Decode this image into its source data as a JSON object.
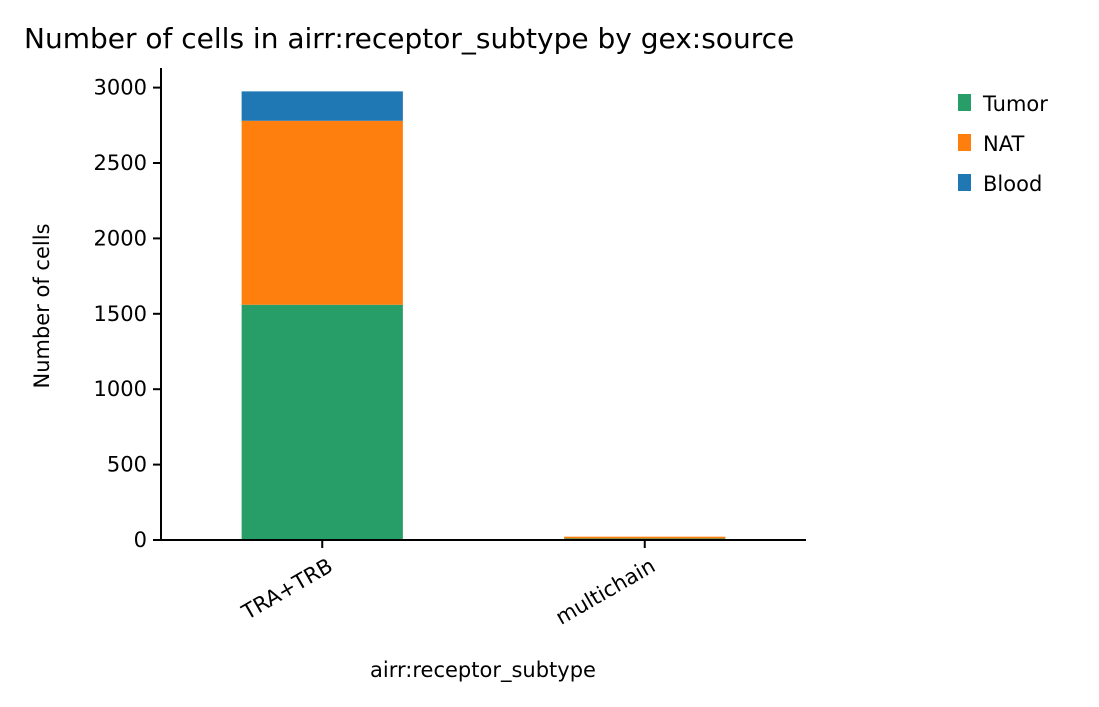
{
  "chart_data": {
    "type": "bar",
    "stacked": true,
    "title": "Number of cells in airr:receptor_subtype by gex:source",
    "xlabel": "airr:receptor_subtype",
    "ylabel": "Number of cells",
    "categories": [
      "TRA+TRB",
      "multichain"
    ],
    "ylim": [
      0,
      3130
    ],
    "yticks": [
      0,
      500,
      1000,
      1500,
      2000,
      2500,
      3000
    ],
    "series": [
      {
        "name": "Tumor",
        "color": "#279e68",
        "values": [
          1560,
          10
        ]
      },
      {
        "name": "NAT",
        "color": "#ff7f0e",
        "values": [
          1220,
          12
        ]
      },
      {
        "name": "Blood",
        "color": "#1f77b4",
        "values": [
          195,
          0
        ]
      }
    ],
    "legend": {
      "placement": "right",
      "order": [
        "Tumor",
        "NAT",
        "Blood"
      ]
    },
    "grid": false
  }
}
